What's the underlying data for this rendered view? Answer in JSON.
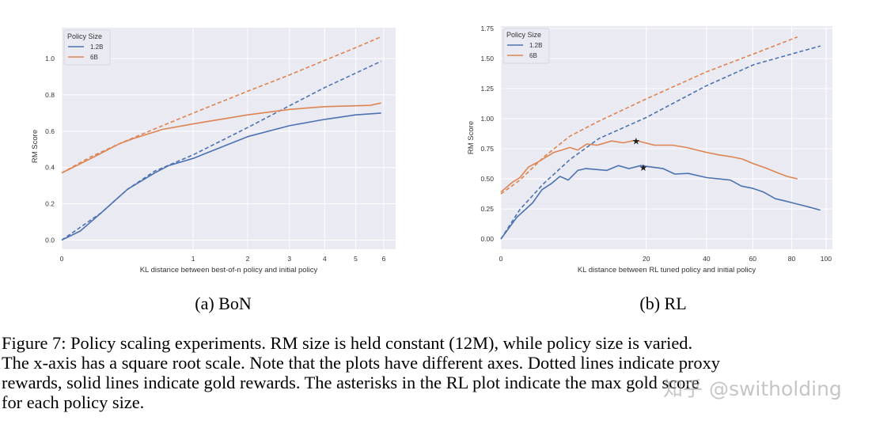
{
  "chart_data": [
    {
      "type": "line",
      "panel_label": "(a) BoN",
      "xlabel": "KL distance between best-of-n policy and initial policy",
      "ylabel": "RM Score",
      "x_scale": "sqrt",
      "xlim": [
        0,
        6.45
      ],
      "ylim": [
        -0.05,
        1.17
      ],
      "xticks": [
        0,
        1,
        2,
        3,
        4,
        5,
        6
      ],
      "xtick_labels": [
        "0",
        "1",
        "2",
        "3",
        "4",
        "5",
        "6"
      ],
      "yticks": [
        0.0,
        0.2,
        0.4,
        0.6,
        0.8,
        1.0
      ],
      "ytick_labels": [
        "0.0",
        "0.2",
        "0.4",
        "0.6",
        "0.8",
        "1.0"
      ],
      "grid": true,
      "legend": {
        "title": "Policy Size",
        "placement": "top-left",
        "entries": [
          "1.2B",
          "6B"
        ]
      },
      "series": [
        {
          "name": "1.2B",
          "kind": "gold",
          "style": "solid",
          "color": "#4c72b0",
          "points": [
            [
              0,
              0
            ],
            [
              0.02,
              0.05
            ],
            [
              0.09,
              0.15
            ],
            [
              0.25,
              0.28
            ],
            [
              0.5,
              0.37
            ],
            [
              0.66,
              0.41
            ],
            [
              1,
              0.45
            ],
            [
              2,
              0.57
            ],
            [
              3,
              0.63
            ],
            [
              4,
              0.665
            ],
            [
              5,
              0.69
            ],
            [
              5.9,
              0.7
            ]
          ]
        },
        {
          "name": "1.2B",
          "kind": "proxy",
          "style": "dashed",
          "color": "#4c72b0",
          "points": [
            [
              0,
              0
            ],
            [
              0.09,
              0.15
            ],
            [
              0.25,
              0.28
            ],
            [
              0.5,
              0.38
            ],
            [
              1,
              0.47
            ],
            [
              2,
              0.62
            ],
            [
              3,
              0.74
            ],
            [
              4,
              0.84
            ],
            [
              5,
              0.92
            ],
            [
              5.9,
              0.985
            ]
          ]
        },
        {
          "name": "6B",
          "kind": "gold",
          "style": "solid",
          "color": "#dd8452",
          "points": [
            [
              0,
              0.37
            ],
            [
              0.05,
              0.45
            ],
            [
              0.19,
              0.53
            ],
            [
              0.3,
              0.56
            ],
            [
              0.59,
              0.61
            ],
            [
              1,
              0.64
            ],
            [
              2,
              0.69
            ],
            [
              3,
              0.72
            ],
            [
              4,
              0.735
            ],
            [
              5,
              0.74
            ],
            [
              5.5,
              0.742
            ],
            [
              5.9,
              0.755
            ]
          ]
        },
        {
          "name": "6B",
          "kind": "proxy",
          "style": "dashed",
          "color": "#dd8452",
          "points": [
            [
              0,
              0.37
            ],
            [
              0.05,
              0.46
            ],
            [
              0.19,
              0.53
            ],
            [
              0.3,
              0.565
            ],
            [
              1,
              0.7
            ],
            [
              2,
              0.82
            ],
            [
              3,
              0.91
            ],
            [
              4,
              0.99
            ],
            [
              5,
              1.06
            ],
            [
              5.9,
              1.12
            ]
          ]
        }
      ],
      "markers": []
    },
    {
      "type": "line",
      "panel_label": "(b) RL",
      "xlabel": "KL distance between RL tuned policy and initial policy",
      "ylabel": "RM Score",
      "x_scale": "sqrt",
      "xlim": [
        0,
        104
      ],
      "ylim": [
        -0.085,
        1.77
      ],
      "xticks": [
        0,
        20,
        40,
        60,
        80,
        100
      ],
      "xtick_labels": [
        "0",
        "20",
        "40",
        "60",
        "80",
        "100"
      ],
      "yticks": [
        0,
        0.25,
        0.5,
        0.75,
        1.0,
        1.25,
        1.5,
        1.75
      ],
      "ytick_labels": [
        "0.00",
        "0.25",
        "0.50",
        "0.75",
        "1.00",
        "1.25",
        "1.50",
        "1.75"
      ],
      "grid": true,
      "legend": {
        "title": "Policy Size",
        "placement": "top-left",
        "entries": [
          "1.2B",
          "6B"
        ]
      },
      "series": [
        {
          "name": "1.2B",
          "kind": "gold",
          "style": "solid",
          "color": "#4c72b0",
          "points": [
            [
              0,
              0
            ],
            [
              0.24,
              0.18
            ],
            [
              0.95,
              0.3
            ],
            [
              1.6,
              0.41
            ],
            [
              2.4,
              0.46
            ],
            [
              3.3,
              0.52
            ],
            [
              4.3,
              0.49
            ],
            [
              5.6,
              0.57
            ],
            [
              6.8,
              0.585
            ],
            [
              10.6,
              0.57
            ],
            [
              13.1,
              0.61
            ],
            [
              15.5,
              0.585
            ],
            [
              18.5,
              0.61
            ],
            [
              24.9,
              0.585
            ],
            [
              28.6,
              0.54
            ],
            [
              33.2,
              0.545
            ],
            [
              40,
              0.51
            ],
            [
              49.8,
              0.49
            ],
            [
              54.7,
              0.44
            ],
            [
              60.2,
              0.42
            ],
            [
              65.3,
              0.39
            ],
            [
              71.3,
              0.335
            ],
            [
              76.7,
              0.315
            ],
            [
              83.2,
              0.29
            ],
            [
              90,
              0.265
            ],
            [
              96.6,
              0.24
            ]
          ]
        },
        {
          "name": "1.2B",
          "kind": "proxy",
          "style": "dashed",
          "color": "#4c72b0",
          "points": [
            [
              0,
              0
            ],
            [
              0.34,
              0.245
            ],
            [
              1.73,
              0.46
            ],
            [
              4.5,
              0.66
            ],
            [
              9.1,
              0.835
            ],
            [
              20,
              1.01
            ],
            [
              40,
              1.275
            ],
            [
              60.6,
              1.45
            ],
            [
              96.6,
              1.605
            ]
          ]
        },
        {
          "name": "6B",
          "kind": "gold",
          "style": "solid",
          "color": "#dd8452",
          "points": [
            [
              0,
              0.39
            ],
            [
              0.12,
              0.47
            ],
            [
              0.34,
              0.51
            ],
            [
              0.73,
              0.6
            ],
            [
              1.3,
              0.64
            ],
            [
              2.66,
              0.72
            ],
            [
              4.5,
              0.76
            ],
            [
              5.6,
              0.74
            ],
            [
              7.0,
              0.79
            ],
            [
              8.8,
              0.78
            ],
            [
              11.6,
              0.815
            ],
            [
              14.2,
              0.8
            ],
            [
              17.1,
              0.82
            ],
            [
              22.3,
              0.78
            ],
            [
              27.9,
              0.78
            ],
            [
              32.7,
              0.76
            ],
            [
              40,
              0.72
            ],
            [
              44.8,
              0.7
            ],
            [
              49.8,
              0.685
            ],
            [
              55.1,
              0.665
            ],
            [
              60.6,
              0.625
            ],
            [
              66.4,
              0.59
            ],
            [
              72.5,
              0.55
            ],
            [
              77.6,
              0.52
            ],
            [
              83.2,
              0.5
            ]
          ]
        },
        {
          "name": "6B",
          "kind": "proxy",
          "style": "dashed",
          "color": "#dd8452",
          "points": [
            [
              0,
              0.375
            ],
            [
              0.34,
              0.49
            ],
            [
              1.73,
              0.68
            ],
            [
              4.5,
              0.855
            ],
            [
              9.1,
              0.98
            ],
            [
              20,
              1.165
            ],
            [
              40,
              1.39
            ],
            [
              60.6,
              1.54
            ],
            [
              83.2,
              1.68
            ]
          ]
        }
      ],
      "markers": [
        {
          "series": "6B",
          "symbol": "asterisk",
          "x": 17.3,
          "y": 0.82
        },
        {
          "series": "1.2B",
          "symbol": "asterisk",
          "x": 19.2,
          "y": 0.6
        }
      ]
    }
  ],
  "caption": {
    "lines": [
      "Figure 7: Policy scaling experiments. RM size is held constant (12M), while policy size is varied.",
      "The x-axis has a square root scale. Note that the plots have different axes. Dotted lines indicate proxy",
      "rewards, solid lines indicate gold rewards. The asterisks in the RL plot indicate the max gold score",
      "for each policy size."
    ]
  },
  "watermark": "知乎 @switholding",
  "colors": {
    "plot_background": "#eaeaf2",
    "grid": "#ffffff",
    "blue": "#4c72b0",
    "orange": "#dd8452"
  }
}
